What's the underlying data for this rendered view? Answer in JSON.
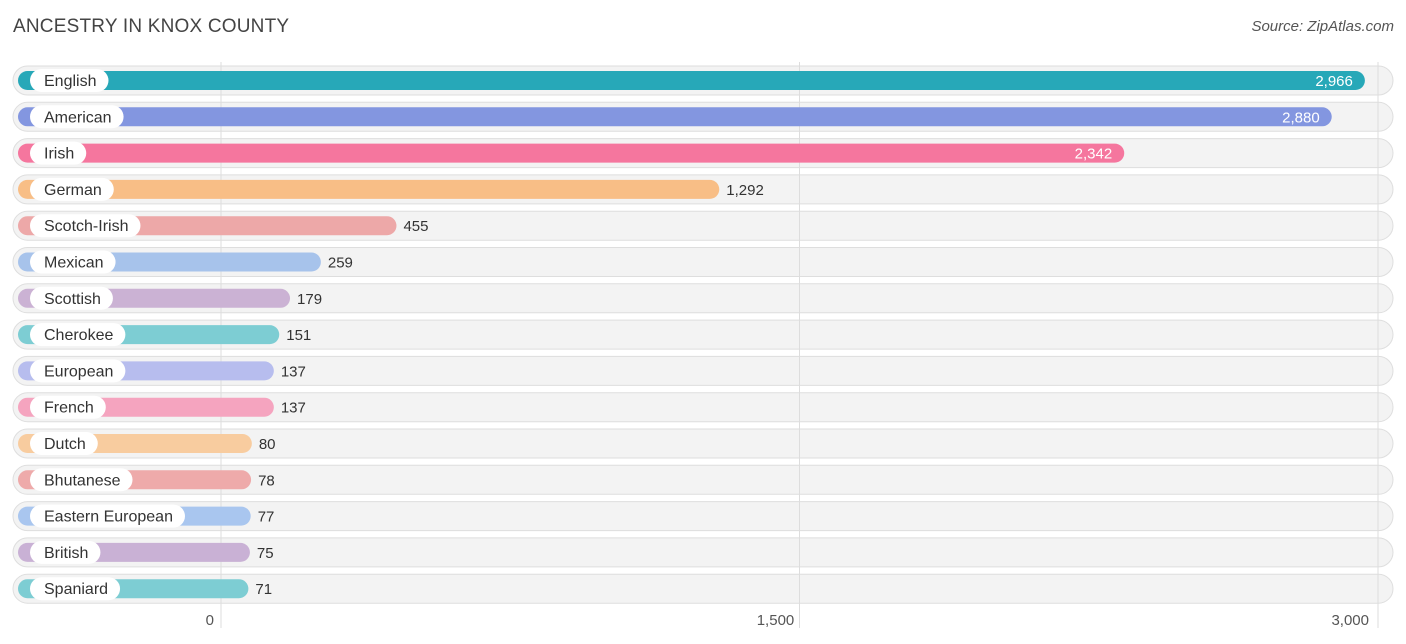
{
  "title": "ANCESTRY IN KNOX COUNTY",
  "source": "Source: ZipAtlas.com",
  "chart_data": {
    "type": "bar",
    "orientation": "horizontal",
    "title": "ANCESTRY IN KNOX COUNTY",
    "categories": [
      "English",
      "American",
      "Irish",
      "German",
      "Scotch-Irish",
      "Mexican",
      "Scottish",
      "Cherokee",
      "European",
      "French",
      "Dutch",
      "Bhutanese",
      "Eastern European",
      "British",
      "Spaniard"
    ],
    "values": [
      2966,
      2880,
      2342,
      1292,
      455,
      259,
      179,
      151,
      137,
      137,
      80,
      78,
      77,
      75,
      71
    ],
    "value_labels": [
      "2,966",
      "2,880",
      "2,342",
      "1,292",
      "455",
      "259",
      "179",
      "151",
      "137",
      "137",
      "80",
      "78",
      "77",
      "75",
      "71"
    ],
    "colors": [
      "#27a8b8",
      "#8396e0",
      "#f5769e",
      "#f8be86",
      "#eda8a8",
      "#a7c3eb",
      "#cbb2d4",
      "#7dcdd3",
      "#b7bdee",
      "#f5a4bf",
      "#f8cc9f",
      "#eeaaaa",
      "#a9c6ef",
      "#c9b1d5",
      "#7dcdd3"
    ],
    "xlim": [
      0,
      3000
    ],
    "xticks": [
      0,
      1500,
      3000
    ],
    "xtick_labels": [
      "0",
      "1,500",
      "3,000"
    ],
    "xlabel": "",
    "ylabel": "",
    "grid": true
  }
}
